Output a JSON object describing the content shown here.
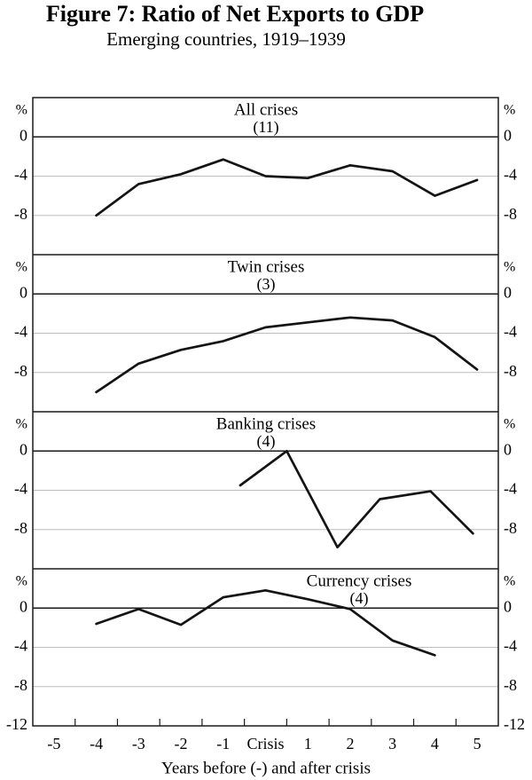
{
  "figure": {
    "title": "Figure 7: Ratio of Net Exports to GDP",
    "subtitle": "Emerging countries, 1919–1939"
  },
  "axes": {
    "x_title": "Years before (-) and after crisis",
    "x_tick_labels": [
      "-5",
      "-4",
      "-3",
      "-2",
      "-1",
      "Crisis",
      "1",
      "2",
      "3",
      "4",
      "5"
    ],
    "x_domain": [
      -5.5,
      5.5
    ],
    "y_unit": "%",
    "y_ticks": [
      {
        "label": "0",
        "value": 0
      },
      {
        "label": "-4",
        "value": -4
      },
      {
        "label": "-8",
        "value": -8
      }
    ],
    "y_bottom": {
      "label": "-12",
      "value": -12
    },
    "y_range_per_panel": [
      4,
      -12
    ],
    "grid": "horizontal-light",
    "label_sides": "left-and-right"
  },
  "colors": {
    "line": "#141414",
    "axis": "#1a1a1a",
    "grid": "#bdbdbd",
    "text": "#000000",
    "background": "#ffffff"
  },
  "chart_data": [
    {
      "type": "line",
      "title": "All crises",
      "count": "(11)",
      "title_position": "center",
      "ylim": [
        4,
        -12
      ],
      "x": [
        -4,
        -3,
        -2,
        -1,
        0,
        1,
        2,
        3,
        4,
        5
      ],
      "values": [
        -8.0,
        -4.8,
        -3.8,
        -2.3,
        -4.0,
        -4.2,
        -2.9,
        -3.5,
        -6.0,
        -4.4
      ]
    },
    {
      "type": "line",
      "title": "Twin crises",
      "count": "(3)",
      "title_position": "center",
      "ylim": [
        4,
        -12
      ],
      "x": [
        -4,
        -3,
        -2,
        -1,
        0,
        1,
        2,
        3,
        4,
        5
      ],
      "values": [
        -10.0,
        -7.1,
        -5.7,
        -4.8,
        -3.4,
        -2.9,
        -2.4,
        -2.7,
        -4.4,
        -7.7
      ]
    },
    {
      "type": "line",
      "title": "Banking crises",
      "count": "(4)",
      "title_position": "center",
      "ylim": [
        4,
        -12
      ],
      "x": [
        -0.6,
        0.5,
        1.7,
        2.7,
        3.9,
        4.9
      ],
      "values": [
        -3.5,
        0.0,
        -9.8,
        -4.9,
        -4.1,
        -8.4
      ]
    },
    {
      "type": "line",
      "title": "Currency crises",
      "count": "(4)",
      "title_position": "right-of-center",
      "ylim": [
        4,
        -12
      ],
      "x": [
        -4,
        -3,
        -2,
        -1,
        0,
        1,
        2,
        3,
        4
      ],
      "values": [
        -1.6,
        -0.1,
        -1.7,
        1.1,
        1.8,
        0.9,
        -0.1,
        -3.3,
        -4.8
      ]
    }
  ]
}
